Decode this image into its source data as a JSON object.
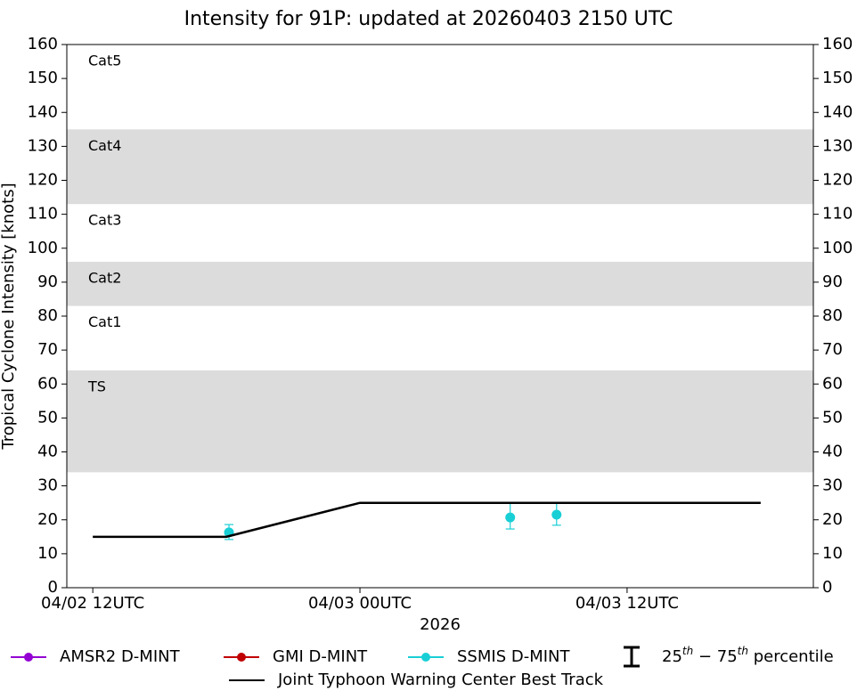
{
  "chart_data": {
    "type": "line",
    "title": "Intensity for 91P: updated at 20260403 2150 UTC",
    "ylabel": "Tropical Cyclone Intensity [knots]",
    "xlabel": "2026",
    "xlim": [
      "2026-04-02T10:50Z",
      "2026-04-03T20:22Z"
    ],
    "xticks": [
      {
        "value": "2026-04-02T12:00Z",
        "label": "04/02 12UTC"
      },
      {
        "value": "2026-04-03T00:00Z",
        "label": "04/03 00UTC"
      },
      {
        "value": "2026-04-03T12:00Z",
        "label": "04/03 12UTC"
      }
    ],
    "ylim": [
      0,
      160
    ],
    "yticks": [
      0,
      10,
      20,
      30,
      40,
      50,
      60,
      70,
      80,
      90,
      100,
      110,
      120,
      130,
      140,
      150,
      160
    ],
    "y2lim": [
      0,
      160
    ],
    "y2ticks": [
      0,
      10,
      20,
      30,
      40,
      50,
      60,
      70,
      80,
      90,
      100,
      110,
      120,
      130,
      140,
      150,
      160
    ],
    "band_color": "#dcdcdc",
    "bands": [
      {
        "label": "TS",
        "range": [
          34,
          64
        ]
      },
      {
        "label": "Cat1",
        "range": [
          64,
          83
        ]
      },
      {
        "label": "Cat2",
        "range": [
          83,
          96
        ]
      },
      {
        "label": "Cat3",
        "range": [
          96,
          113
        ]
      },
      {
        "label": "Cat4",
        "range": [
          113,
          135
        ]
      },
      {
        "label": "Cat5",
        "range": [
          135,
          160
        ]
      }
    ],
    "series": [
      {
        "name": "AMSR2 D-MINT",
        "color": "#9400d3",
        "mark": "errorbar",
        "x": [],
        "values": [],
        "p25": [],
        "p75": []
      },
      {
        "name": "GMI D-MINT",
        "color": "#c00000",
        "mark": "errorbar",
        "x": [],
        "values": [],
        "p25": [],
        "p75": []
      },
      {
        "name": "SSMIS D-MINT",
        "color": "#18cfd6",
        "mark": "errorbar",
        "x": [
          "2026-04-02T18:07Z",
          "2026-04-03T06:45Z",
          "2026-04-03T08:50Z"
        ],
        "values": [
          16.3,
          20.7,
          21.5
        ],
        "p25": [
          14.2,
          17.3,
          18.4
        ],
        "p75": [
          18.6,
          24.9,
          24.9
        ]
      },
      {
        "name": "Joint Typhoon Warning Center Best Track",
        "color": "#000000",
        "mark": "line",
        "x": [
          "2026-04-02T12:00Z",
          "2026-04-02T18:00Z",
          "2026-04-03T00:00Z",
          "2026-04-03T06:00Z",
          "2026-04-03T12:00Z",
          "2026-04-03T18:00Z"
        ],
        "values": [
          15,
          15,
          25,
          25,
          25,
          25
        ]
      }
    ],
    "percentile_legend": [
      "25",
      "th",
      " − 75",
      "th",
      " percentile"
    ]
  }
}
